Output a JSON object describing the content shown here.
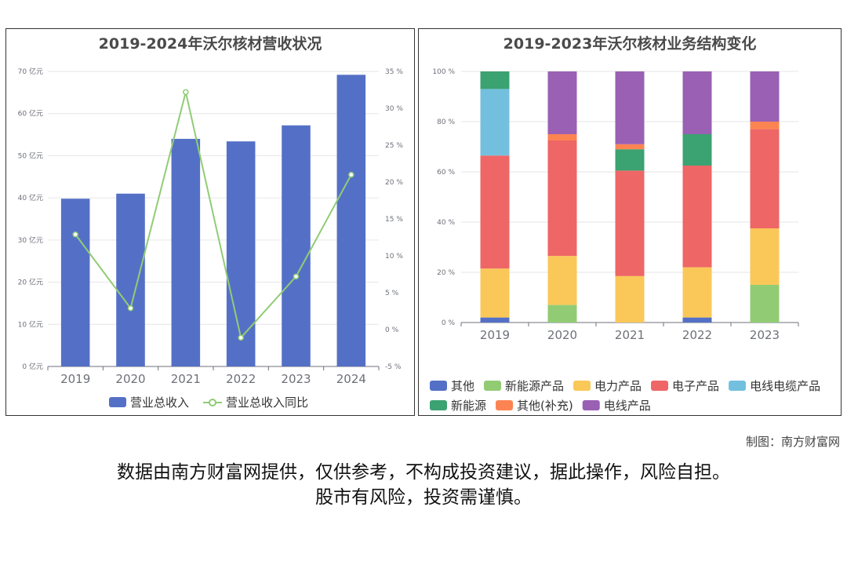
{
  "charts": {
    "left": {
      "title": "2019-2024年沃尔核材营收状况"
    },
    "right": {
      "title": "2019-2023年沃尔核材业务结构变化"
    }
  },
  "footer": {
    "credit": "制图：南方财富网",
    "disclaimer_line1": "数据由南方财富网提供，仅供参考，不构成投资建议，据此操作，风险自担。",
    "disclaimer_line2": "股市有风险，投资需谨慎。"
  },
  "colors": {
    "bar": "#5470c6",
    "line": "#91cc75",
    "grid": "#e6e6e6",
    "axis": "#6e7079"
  },
  "chart_data": [
    {
      "type": "bar",
      "title": "2019-2024年沃尔核材营收状况",
      "categories": [
        "2019",
        "2020",
        "2021",
        "2022",
        "2023",
        "2024"
      ],
      "series": [
        {
          "name": "营业总收入",
          "type": "bar",
          "axis": "left",
          "color": "#5470c6",
          "values": [
            39.8,
            41.0,
            54.0,
            53.4,
            57.2,
            69.2
          ]
        },
        {
          "name": "营业总收入同比",
          "type": "line",
          "axis": "right",
          "color": "#91cc75",
          "values": [
            12.9,
            2.9,
            32.2,
            -1.1,
            7.2,
            21.0
          ]
        }
      ],
      "y_left": {
        "min": 0,
        "max": 70,
        "step": 10,
        "suffix": " 亿元"
      },
      "y_right": {
        "min": -5,
        "max": 35,
        "step": 5,
        "suffix": " %"
      },
      "grid": true,
      "legend_position": "bottom"
    },
    {
      "type": "bar",
      "stacked": true,
      "title": "2019-2023年沃尔核材业务结构变化",
      "categories": [
        "2019",
        "2020",
        "2021",
        "2022",
        "2023"
      ],
      "series": [
        {
          "name": "其他",
          "color": "#5470c6",
          "values": [
            2.0,
            0,
            0,
            2.0,
            0
          ]
        },
        {
          "name": "新能源产品",
          "color": "#91cc75",
          "values": [
            0,
            7.0,
            0,
            0,
            15.0
          ]
        },
        {
          "name": "电力产品",
          "color": "#fac858",
          "values": [
            19.5,
            19.5,
            18.5,
            20.0,
            22.5
          ]
        },
        {
          "name": "电子产品",
          "color": "#ee6666",
          "values": [
            45.0,
            46.0,
            42.0,
            40.5,
            39.5
          ]
        },
        {
          "name": "电线电缆产品",
          "color": "#73c0de",
          "values": [
            26.5,
            0,
            0,
            0,
            0
          ]
        },
        {
          "name": "新能源",
          "color": "#3ba272",
          "values": [
            7.0,
            0,
            8.5,
            12.5,
            0
          ]
        },
        {
          "name": "其他(补充)",
          "color": "#fc8452",
          "values": [
            0,
            2.5,
            2.0,
            0,
            3.0
          ]
        },
        {
          "name": "电线产品",
          "color": "#9a60b4",
          "values": [
            0,
            25.0,
            29.0,
            25.0,
            20.0
          ]
        }
      ],
      "y": {
        "min": 0,
        "max": 100,
        "step": 20,
        "suffix": " %"
      },
      "grid": true,
      "legend_position": "bottom"
    }
  ]
}
